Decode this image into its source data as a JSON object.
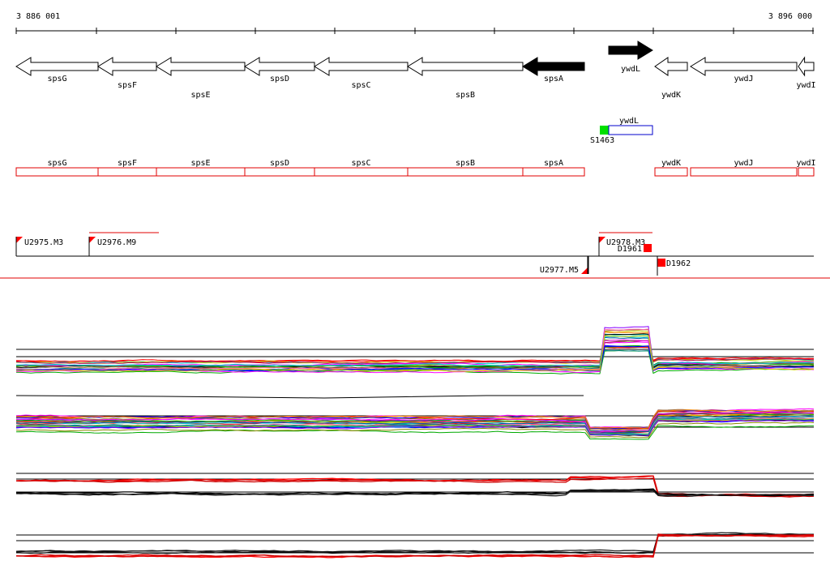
{
  "coords": {
    "start": "3 886 001",
    "end": "3 896 000"
  },
  "genes": [
    {
      "name": "spsG",
      "strand": "-",
      "filled": false
    },
    {
      "name": "spsF",
      "strand": "-",
      "filled": false
    },
    {
      "name": "spsE",
      "strand": "-",
      "filled": false
    },
    {
      "name": "spsD",
      "strand": "-",
      "filled": false
    },
    {
      "name": "spsC",
      "strand": "-",
      "filled": false
    },
    {
      "name": "spsB",
      "strand": "-",
      "filled": false
    },
    {
      "name": "spsA",
      "strand": "-",
      "filled": true
    },
    {
      "name": "ywdL",
      "strand": "+",
      "filled": true
    },
    {
      "name": "ywdK",
      "strand": "-",
      "filled": false
    },
    {
      "name": "ywdJ",
      "strand": "-",
      "filled": false
    },
    {
      "name": "ywdI",
      "strand": "-",
      "filled": false
    }
  ],
  "feature_track": {
    "boxes": [
      "ywdL"
    ],
    "markers": [
      {
        "label": "S1463",
        "color": "#00e000"
      }
    ]
  },
  "gene_boxes": [
    "spsG",
    "spsF",
    "spsE",
    "spsD",
    "spsC",
    "spsB",
    "spsA",
    "ywdK",
    "ywdJ",
    "ywdI"
  ],
  "transcript_units": [
    {
      "label": "U2975.M3"
    },
    {
      "label": "U2976.M9"
    },
    {
      "label": "U2977.M5"
    },
    {
      "label": "U2978.M3"
    },
    {
      "label": "D1961"
    },
    {
      "label": "D1962"
    }
  ],
  "colors": {
    "gene_box": "#e00000",
    "feature_box": "#0000cc",
    "marker": "#00e000",
    "terminator": "#ff0000",
    "divider": "#e00000"
  }
}
